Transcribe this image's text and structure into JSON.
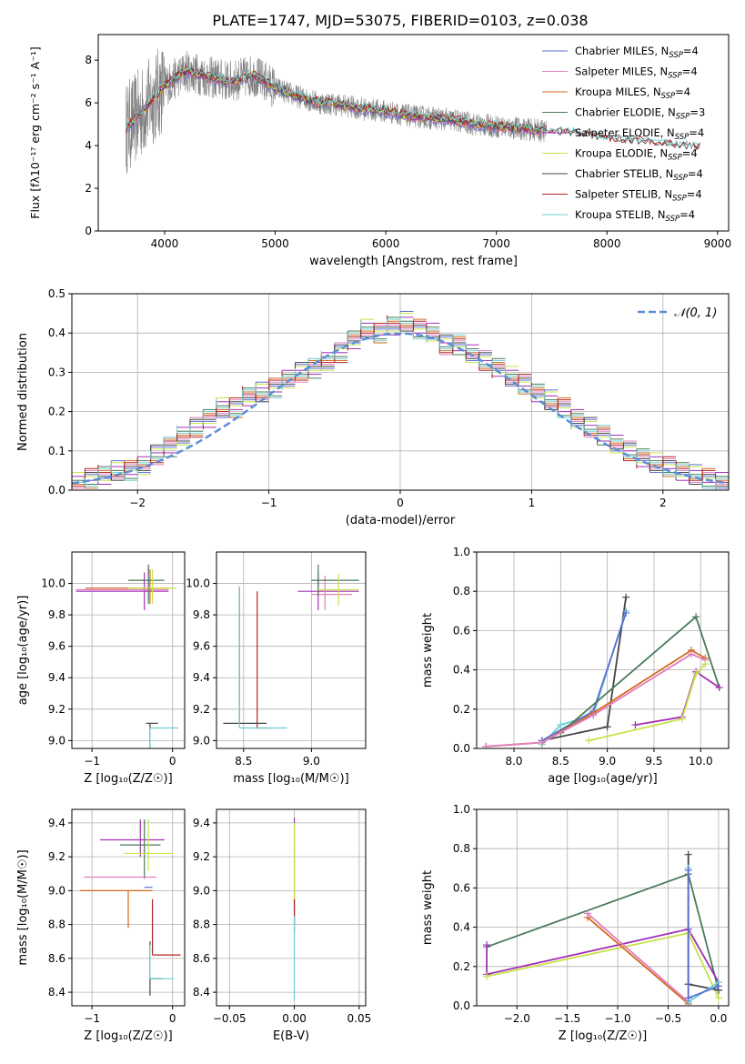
{
  "title": "PLATE=1747, MJD=53075, FIBERID=0103, z=0.038",
  "colors": [
    "#5b6fd6",
    "#e27fc0",
    "#d2691e",
    "#4a7a5a",
    "#a330b5",
    "#c8e24a",
    "#444444",
    "#b22222",
    "#6fcfd0"
  ],
  "chart_data": [
    {
      "type": "line",
      "panel": "spectrum",
      "xlabel": "wavelength [Angstrom, rest frame]",
      "ylabel": "Flux [fλ10⁻¹⁷ erg cm⁻² s⁻¹ A⁻¹]",
      "xlim": [
        3400,
        9100
      ],
      "ylim": [
        0,
        9.2
      ],
      "xticks": [
        4000,
        5000,
        6000,
        7000,
        8000,
        9000
      ],
      "yticks": [
        0,
        2,
        4,
        6,
        8
      ],
      "grid": false,
      "legend_position": "top-right",
      "x": [
        3650,
        3800,
        4000,
        4200,
        4400,
        4600,
        4800,
        5000,
        5200,
        5400,
        5600,
        5800,
        6000,
        6200,
        6400,
        6600,
        6800,
        7000,
        7200,
        7400,
        7600,
        7800,
        8000,
        8200,
        8400,
        8600,
        8800
      ],
      "observed": [
        4.8,
        5.6,
        6.8,
        7.5,
        7.2,
        7.0,
        7.3,
        6.7,
        6.3,
        6.0,
        5.9,
        5.7,
        5.6,
        5.4,
        5.3,
        5.2,
        5.0,
        4.9,
        4.8,
        4.7,
        4.6,
        4.5,
        4.3,
        4.2,
        4.1,
        4.0,
        3.9
      ],
      "series": [
        {
          "name": "Chabrier MILES, N$_{SSP}$=4",
          "label_main": "Chabrier MILES, N",
          "label_sub": "SSP",
          "label_end": "=4",
          "color": "#5b6fd6"
        },
        {
          "name": "Salpeter MILES, N$_{SSP}$=4",
          "label_main": "Salpeter MILES, N",
          "label_sub": "SSP",
          "label_end": "=4",
          "color": "#e27fc0"
        },
        {
          "name": "Kroupa MILES, N$_{SSP}$=4",
          "label_main": "Kroupa MILES, N",
          "label_sub": "SSP",
          "label_end": "=4",
          "color": "#d2691e"
        },
        {
          "name": "Chabrier ELODIE, N$_{SSP}$=3",
          "label_main": "Chabrier ELODIE, N",
          "label_sub": "SSP",
          "label_end": "=3",
          "color": "#4a7a5a"
        },
        {
          "name": "Salpeter ELODIE, N$_{SSP}$=4",
          "label_main": "Salpeter ELODIE, N",
          "label_sub": "SSP",
          "label_end": "=4",
          "color": "#a330b5"
        },
        {
          "name": "Kroupa ELODIE, N$_{SSP}$=4",
          "label_main": "Kroupa ELODIE, N",
          "label_sub": "SSP",
          "label_end": "=4",
          "color": "#c8e24a"
        },
        {
          "name": "Chabrier STELIB, N$_{SSP}$=4",
          "label_main": "Chabrier STELIB, N",
          "label_sub": "SSP",
          "label_end": "=4",
          "color": "#444444"
        },
        {
          "name": "Salpeter STELIB, N$_{SSP}$=4",
          "label_main": "Salpeter STELIB, N",
          "label_sub": "SSP",
          "label_end": "=4",
          "color": "#b22222"
        },
        {
          "name": "Kroupa STELIB, N$_{SSP}$=4",
          "label_main": "Kroupa STELIB, N",
          "label_sub": "SSP",
          "label_end": "=4",
          "color": "#6fcfd0"
        }
      ]
    },
    {
      "type": "line",
      "panel": "residuals",
      "xlabel": "(data-model)/error",
      "ylabel": "Normed distribution",
      "xlim": [
        -2.5,
        2.5
      ],
      "ylim": [
        0,
        0.5
      ],
      "xticks": [
        -2,
        -1,
        0,
        1,
        2
      ],
      "xtick_labels": [
        "−2",
        "−1",
        "0",
        "1",
        "2"
      ],
      "yticks": [
        0.0,
        0.1,
        0.2,
        0.3,
        0.4,
        0.5
      ],
      "ytick_labels": [
        "0.0",
        "0.1",
        "0.2",
        "0.3",
        "0.4",
        "0.5"
      ],
      "grid": true,
      "legend_position": "top-right",
      "legend_label": "𝒩(0, 1)",
      "bin_width": 0.1,
      "histogram_centers": [
        -2.45,
        -2.35,
        -2.25,
        -2.15,
        -2.05,
        -1.95,
        -1.85,
        -1.75,
        -1.65,
        -1.55,
        -1.45,
        -1.35,
        -1.25,
        -1.15,
        -1.05,
        -0.95,
        -0.85,
        -0.75,
        -0.65,
        -0.55,
        -0.45,
        -0.35,
        -0.25,
        -0.15,
        -0.05,
        0.05,
        0.15,
        0.25,
        0.35,
        0.45,
        0.55,
        0.65,
        0.75,
        0.85,
        0.95,
        1.05,
        1.15,
        1.25,
        1.35,
        1.45,
        1.55,
        1.65,
        1.75,
        1.85,
        1.95,
        2.05,
        2.15,
        2.25,
        2.35,
        2.45
      ],
      "histogram_values": [
        0.02,
        0.03,
        0.04,
        0.05,
        0.05,
        0.06,
        0.09,
        0.11,
        0.14,
        0.16,
        0.18,
        0.21,
        0.21,
        0.24,
        0.25,
        0.26,
        0.28,
        0.3,
        0.31,
        0.33,
        0.35,
        0.38,
        0.41,
        0.4,
        0.42,
        0.43,
        0.41,
        0.4,
        0.37,
        0.37,
        0.35,
        0.33,
        0.31,
        0.29,
        0.27,
        0.25,
        0.23,
        0.21,
        0.18,
        0.16,
        0.14,
        0.12,
        0.1,
        0.08,
        0.07,
        0.06,
        0.05,
        0.04,
        0.03,
        0.02
      ],
      "gaussian": {
        "mean": 0,
        "sigma": 1
      }
    },
    {
      "type": "scatter",
      "panel": "age-vs-Z",
      "xlabel": "Z [log₁₀(Z/Z☉)]",
      "ylabel": "age  [log₁₀(age/yr)]",
      "xlim": [
        -1.25,
        0.15
      ],
      "ylim": [
        8.95,
        10.2
      ],
      "xticks": [
        -1,
        0
      ],
      "xtick_labels": [
        "−1",
        "0"
      ],
      "yticks": [
        9.0,
        9.2,
        9.4,
        9.6,
        9.8,
        10.0
      ],
      "ytick_labels": [
        "9.0",
        "9.2",
        "9.4",
        "9.6",
        "9.8",
        "10.0"
      ],
      "grid": true,
      "crosses": [
        {
          "x": -0.35,
          "y": 9.95,
          "xerr": [
            0.85,
            0.3
          ],
          "yerr": [
            0.12,
            0.12
          ],
          "color": "#a330b5"
        },
        {
          "x": -0.3,
          "y": 9.96,
          "xerr": [
            0.9,
            0.25
          ],
          "yerr": [
            0.05,
            0.15
          ],
          "color": "#e27fc0"
        },
        {
          "x": -0.28,
          "y": 9.97,
          "xerr": [
            0.8,
            0.25
          ],
          "yerr": [
            0.1,
            0.12
          ],
          "color": "#d2691e"
        },
        {
          "x": -0.3,
          "y": 10.02,
          "xerr": [
            0.25,
            0.2
          ],
          "yerr": [
            0.15,
            0.1
          ],
          "color": "#4a7a5a"
        },
        {
          "x": -0.25,
          "y": 9.97,
          "xerr": [
            0.3,
            0.3
          ],
          "yerr": [
            0.1,
            0.12
          ],
          "color": "#c8e24a"
        },
        {
          "x": -0.28,
          "y": 9.11,
          "xerr": [
            0.05,
            0.1
          ],
          "yerr": [
            0.9,
            0.0
          ],
          "color": "#444444"
        },
        {
          "x": -0.28,
          "y": 9.08,
          "xerr": [
            0.0,
            0.35
          ],
          "yerr": [
            0.85,
            0.0
          ],
          "color": "#6fcfd0"
        }
      ]
    },
    {
      "type": "scatter",
      "panel": "age-vs-mass",
      "xlabel": "mass [log₁₀(M/M☉)]",
      "ylabel": "",
      "xlim": [
        8.3,
        9.4
      ],
      "ylim": [
        8.95,
        10.2
      ],
      "xticks": [
        8.5,
        9.0
      ],
      "xtick_labels": [
        "8.5",
        "9.0"
      ],
      "yticks": [
        9.0,
        9.2,
        9.4,
        9.6,
        9.8,
        10.0
      ],
      "ytick_labels": [
        "9.0",
        "9.2",
        "9.4",
        "9.6",
        "9.8",
        "10.0"
      ],
      "grid": true,
      "crosses": [
        {
          "x": 9.05,
          "y": 9.95,
          "xerr": [
            0.15,
            0.3
          ],
          "yerr": [
            0.12,
            0.12
          ],
          "color": "#a330b5"
        },
        {
          "x": 9.1,
          "y": 9.93,
          "xerr": [
            0.1,
            0.2
          ],
          "yerr": [
            0.1,
            0.12
          ],
          "color": "#e27fc0"
        },
        {
          "x": 9.05,
          "y": 10.02,
          "xerr": [
            0.05,
            0.3
          ],
          "yerr": [
            0.1,
            0.1
          ],
          "color": "#4a7a5a"
        },
        {
          "x": 9.2,
          "y": 9.96,
          "xerr": [
            0.15,
            0.15
          ],
          "yerr": [
            0.1,
            0.1
          ],
          "color": "#c8e24a"
        },
        {
          "x": 8.6,
          "y": 9.08,
          "xerr": [
            0.0,
            0.1
          ],
          "yerr": [
            0.0,
            0.87
          ],
          "color": "#b22222"
        },
        {
          "x": 8.47,
          "y": 9.11,
          "xerr": [
            0.12,
            0.2
          ],
          "yerr": [
            0.0,
            0.87
          ],
          "color": "#444444"
        },
        {
          "x": 8.47,
          "y": 9.08,
          "xerr": [
            0.0,
            0.35
          ],
          "yerr": [
            0.0,
            0.9
          ],
          "color": "#6fcfd0"
        }
      ]
    },
    {
      "type": "line",
      "panel": "weight-vs-age",
      "xlabel": "age  [log₁₀(age/yr)]",
      "ylabel": "mass weight",
      "xlim": [
        7.6,
        10.3
      ],
      "ylim": [
        0,
        1.0
      ],
      "xticks": [
        8.0,
        8.5,
        9.0,
        9.5,
        10.0
      ],
      "xtick_labels": [
        "8.0",
        "8.5",
        "9.0",
        "9.5",
        "10.0"
      ],
      "yticks": [
        0.0,
        0.2,
        0.4,
        0.6,
        0.8,
        1.0
      ],
      "ytick_labels": [
        "0.0",
        "0.2",
        "0.4",
        "0.6",
        "0.8",
        "1.0"
      ],
      "grid": true,
      "series": [
        {
          "color": "#444444",
          "x": [
            8.3,
            9.0,
            9.2
          ],
          "y": [
            0.04,
            0.11,
            0.77
          ]
        },
        {
          "color": "#6fcfd0",
          "x": [
            8.3,
            8.5,
            8.85,
            9.2
          ],
          "y": [
            0.02,
            0.12,
            0.17,
            0.7
          ]
        },
        {
          "color": "#5b6fd6",
          "x": [
            8.3,
            8.85,
            9.2
          ],
          "y": [
            0.04,
            0.19,
            0.69
          ]
        },
        {
          "color": "#4a7a5a",
          "x": [
            8.5,
            9.95,
            10.2
          ],
          "y": [
            0.08,
            0.67,
            0.31
          ]
        },
        {
          "color": "#d2691e",
          "x": [
            7.7,
            8.3,
            8.85,
            9.9,
            10.05
          ],
          "y": [
            0.01,
            0.03,
            0.18,
            0.5,
            0.46
          ]
        },
        {
          "color": "#e27fc0",
          "x": [
            7.7,
            8.3,
            8.85,
            9.9,
            10.05
          ],
          "y": [
            0.01,
            0.03,
            0.17,
            0.48,
            0.45
          ]
        },
        {
          "color": "#a330b5",
          "x": [
            9.3,
            9.8,
            9.95,
            10.2
          ],
          "y": [
            0.12,
            0.16,
            0.39,
            0.31
          ]
        },
        {
          "color": "#c8e24a",
          "x": [
            8.8,
            9.8,
            9.95,
            10.05
          ],
          "y": [
            0.04,
            0.15,
            0.38,
            0.43
          ]
        }
      ]
    },
    {
      "type": "scatter",
      "panel": "mass-vs-Z",
      "xlabel": "Z [log₁₀(Z/Z☉)]",
      "ylabel": "mass [log₁₀(M/M☉)]",
      "xlim": [
        -1.25,
        0.15
      ],
      "ylim": [
        8.32,
        9.48
      ],
      "xticks": [
        -1,
        0
      ],
      "xtick_labels": [
        "−1",
        "0"
      ],
      "yticks": [
        8.4,
        8.6,
        8.8,
        9.0,
        9.2,
        9.4
      ],
      "ytick_labels": [
        "8.4",
        "8.6",
        "8.8",
        "9.0",
        "9.2",
        "9.4"
      ],
      "grid": true,
      "crosses": [
        {
          "x": -0.4,
          "y": 9.3,
          "xerr": [
            0.5,
            0.3
          ],
          "yerr": [
            0.1,
            0.12
          ],
          "color": "#a330b5"
        },
        {
          "x": -0.35,
          "y": 9.27,
          "xerr": [
            0.3,
            0.2
          ],
          "yerr": [
            0.2,
            0.15
          ],
          "color": "#4a7a5a"
        },
        {
          "x": -0.3,
          "y": 9.22,
          "xerr": [
            0.3,
            0.3
          ],
          "yerr": [
            0.1,
            0.2
          ],
          "color": "#c8e24a"
        },
        {
          "x": -0.5,
          "y": 9.08,
          "xerr": [
            0.6,
            0.3
          ],
          "yerr": [
            0.0,
            0.0
          ],
          "color": "#e27fc0"
        },
        {
          "x": -0.55,
          "y": 9.0,
          "xerr": [
            0.6,
            0.3
          ],
          "yerr": [
            0.22,
            0.0
          ],
          "color": "#d2691e"
        },
        {
          "x": -0.25,
          "y": 9.02,
          "xerr": [
            0.1,
            0.0
          ],
          "yerr": [
            0.0,
            0.0
          ],
          "color": "#5b6fd6"
        },
        {
          "x": -0.25,
          "y": 8.62,
          "xerr": [
            0.0,
            0.35
          ],
          "yerr": [
            0.0,
            0.33
          ],
          "color": "#b22222"
        },
        {
          "x": -0.28,
          "y": 8.48,
          "xerr": [
            0.0,
            0.15
          ],
          "yerr": [
            0.1,
            0.22
          ],
          "color": "#444444"
        },
        {
          "x": -0.28,
          "y": 8.48,
          "xerr": [
            0.0,
            0.3
          ],
          "yerr": [
            0.0,
            0.2
          ],
          "color": "#6fcfd0"
        }
      ]
    },
    {
      "type": "scatter",
      "panel": "mass-vs-ebv",
      "xlabel": "E(B-V)",
      "ylabel": "",
      "xlim": [
        -0.06,
        0.055
      ],
      "ylim": [
        8.32,
        9.48
      ],
      "xticks": [
        -0.05,
        0.0,
        0.05
      ],
      "xtick_labels": [
        "−0.05",
        "0.00",
        "0.05"
      ],
      "yticks": [
        8.4,
        8.6,
        8.8,
        9.0,
        9.2,
        9.4
      ],
      "ytick_labels": [
        "8.4",
        "8.6",
        "8.8",
        "9.0",
        "9.2",
        "9.4"
      ],
      "grid": true,
      "crosses": [
        {
          "x": 0.0,
          "y": 9.3,
          "xerr": [
            0,
            0
          ],
          "yerr": [
            0.5,
            0.13
          ],
          "color": "#a330b5"
        },
        {
          "x": 0.0,
          "y": 9.2,
          "xerr": [
            0,
            0
          ],
          "yerr": [
            0.4,
            0.2
          ],
          "color": "#c8e24a"
        },
        {
          "x": 0.0,
          "y": 8.85,
          "xerr": [
            0,
            0
          ],
          "yerr": [
            0.1,
            0.1
          ],
          "color": "#b22222"
        },
        {
          "x": 0.0,
          "y": 8.6,
          "xerr": [
            0,
            0
          ],
          "yerr": [
            0.25,
            0.25
          ],
          "color": "#6fcfd0"
        }
      ]
    },
    {
      "type": "line",
      "panel": "weight-vs-Z",
      "xlabel": "Z [log₁₀(Z/Z☉)]",
      "ylabel": "mass weight",
      "xlim": [
        -2.4,
        0.1
      ],
      "ylim": [
        0,
        1.0
      ],
      "xticks": [
        -2.0,
        -1.5,
        -1.0,
        -0.5,
        0.0
      ],
      "xtick_labels": [
        "−2.0",
        "−1.5",
        "−1.0",
        "−0.5",
        "0.0"
      ],
      "yticks": [
        0.0,
        0.2,
        0.4,
        0.6,
        0.8,
        1.0
      ],
      "ytick_labels": [
        "0.0",
        "0.2",
        "0.4",
        "0.6",
        "0.8",
        "1.0"
      ],
      "grid": true,
      "series": [
        {
          "color": "#4a7a5a",
          "x": [
            -2.3,
            -0.3,
            0.0
          ],
          "y": [
            0.3,
            0.67,
            0.08
          ]
        },
        {
          "color": "#a330b5",
          "x": [
            -2.3,
            -2.3,
            -0.3,
            0.0
          ],
          "y": [
            0.31,
            0.16,
            0.39,
            0.12
          ]
        },
        {
          "color": "#c8e24a",
          "x": [
            -2.3,
            -0.3,
            0.0
          ],
          "y": [
            0.15,
            0.37,
            0.04
          ]
        },
        {
          "color": "#d2691e",
          "x": [
            -1.3,
            -0.3
          ],
          "y": [
            0.45,
            0.01
          ]
        },
        {
          "color": "#e27fc0",
          "x": [
            -1.3,
            -0.3
          ],
          "y": [
            0.47,
            0.02
          ]
        },
        {
          "color": "#444444",
          "x": [
            -0.3,
            -0.3,
            0.0
          ],
          "y": [
            0.77,
            0.11,
            0.08
          ]
        },
        {
          "color": "#6fcfd0",
          "x": [
            -0.3,
            -0.3,
            0.0
          ],
          "y": [
            0.7,
            0.02,
            0.12
          ]
        },
        {
          "color": "#5b6fd6",
          "x": [
            -0.3,
            -0.3,
            0.0
          ],
          "y": [
            0.69,
            0.04,
            0.1
          ]
        }
      ]
    }
  ]
}
